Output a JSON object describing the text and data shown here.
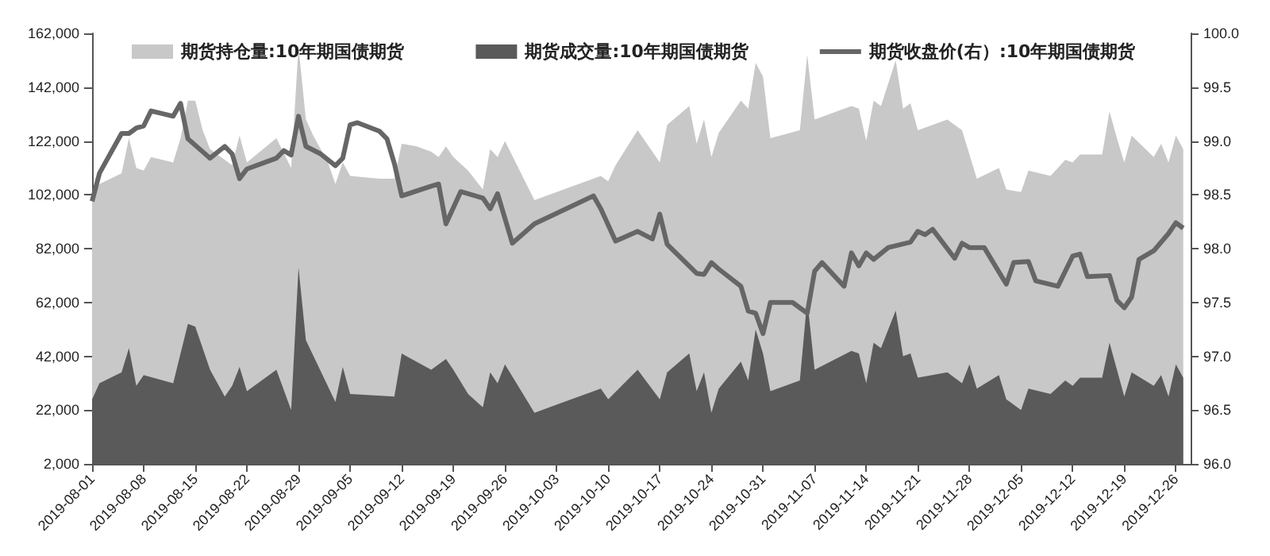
{
  "chart_data": {
    "type": "area",
    "legend": "top",
    "xlim": [
      "2019-08-01",
      "2019-12-28"
    ],
    "xticks": [
      "2019-08-01",
      "2019-08-08",
      "2019-08-15",
      "2019-08-22",
      "2019-08-29",
      "2019-09-05",
      "2019-09-12",
      "2019-09-19",
      "2019-09-26",
      "2019-10-03",
      "2019-10-10",
      "2019-10-17",
      "2019-10-24",
      "2019-10-31",
      "2019-11-07",
      "2019-11-14",
      "2019-11-21",
      "2019-11-28",
      "2019-12-05",
      "2019-12-12",
      "2019-12-19",
      "2019-12-26"
    ],
    "ylim": [
      2000,
      162000
    ],
    "yticks": [
      {
        "value": 2000,
        "label": "2,000"
      },
      {
        "value": 22000,
        "label": "22,000"
      },
      {
        "value": 42000,
        "label": "42,000"
      },
      {
        "value": 62000,
        "label": "62,000"
      },
      {
        "value": 82000,
        "label": "82,000"
      },
      {
        "value": 102000,
        "label": "102,000"
      },
      {
        "value": 122000,
        "label": "122,000"
      },
      {
        "value": 142000,
        "label": "142,000"
      },
      {
        "value": 162000,
        "label": "162,000"
      }
    ],
    "y2lim": [
      96,
      100
    ],
    "y2ticks": [
      {
        "value": 96,
        "label": "96.0"
      },
      {
        "value": 96.5,
        "label": "96.5"
      },
      {
        "value": 97,
        "label": "97.0"
      },
      {
        "value": 97.5,
        "label": "97.5"
      },
      {
        "value": 98,
        "label": "98.0"
      },
      {
        "value": 98.5,
        "label": "98.5"
      },
      {
        "value": 99,
        "label": "99.0"
      },
      {
        "value": 99.5,
        "label": "99.5"
      },
      {
        "value": 100,
        "label": "100.0"
      }
    ],
    "series": [
      {
        "name": "期货持仓量:10年期国债期货",
        "color": "#c8c8c8",
        "x": [
          "2019-08-01",
          "2019-08-02",
          "2019-08-05",
          "2019-08-06",
          "2019-08-07",
          "2019-08-08",
          "2019-08-09",
          "2019-08-12",
          "2019-08-13",
          "2019-08-14",
          "2019-08-15",
          "2019-08-16",
          "2019-08-17",
          "2019-08-19",
          "2019-08-20",
          "2019-08-21",
          "2019-08-22",
          "2019-08-26",
          "2019-08-28",
          "2019-08-29",
          "2019-08-30",
          "2019-08-31",
          "2019-09-02",
          "2019-09-03",
          "2019-09-04",
          "2019-09-05",
          "2019-09-09",
          "2019-09-11",
          "2019-09-12",
          "2019-09-14",
          "2019-09-16",
          "2019-09-17",
          "2019-09-18",
          "2019-09-19",
          "2019-09-21",
          "2019-09-23",
          "2019-09-24",
          "2019-09-25",
          "2019-09-26",
          "2019-09-30",
          "2019-10-09",
          "2019-10-10",
          "2019-10-11",
          "2019-10-14",
          "2019-10-17",
          "2019-10-18",
          "2019-10-21",
          "2019-10-22",
          "2019-10-23",
          "2019-10-24",
          "2019-10-25",
          "2019-10-28",
          "2019-10-29",
          "2019-10-30",
          "2019-10-31",
          "2019-11-01",
          "2019-11-05",
          "2019-11-06",
          "2019-11-07",
          "2019-11-12",
          "2019-11-13",
          "2019-11-14",
          "2019-11-15",
          "2019-11-16",
          "2019-11-18",
          "2019-11-19",
          "2019-11-20",
          "2019-11-21",
          "2019-11-25",
          "2019-11-27",
          "2019-11-29",
          "2019-12-02",
          "2019-12-03",
          "2019-12-05",
          "2019-12-06",
          "2019-12-09",
          "2019-12-11",
          "2019-12-12",
          "2019-12-13",
          "2019-12-16",
          "2019-12-17",
          "2019-12-18",
          "2019-12-19",
          "2019-12-20",
          "2019-12-23",
          "2019-12-24",
          "2019-12-25",
          "2019-12-26",
          "2019-12-27"
        ],
        "values": [
          102000,
          106000,
          110000,
          123000,
          112000,
          111000,
          116000,
          114000,
          123000,
          137000,
          137000,
          126000,
          119000,
          115000,
          113000,
          124000,
          114000,
          123000,
          112000,
          157000,
          130000,
          124000,
          114000,
          106000,
          114000,
          109000,
          108000,
          108000,
          121000,
          120000,
          118000,
          116000,
          120000,
          116000,
          111000,
          104000,
          119000,
          116000,
          122000,
          100000,
          109000,
          107000,
          113000,
          126000,
          114000,
          128000,
          135000,
          121000,
          130000,
          116000,
          125000,
          137000,
          134000,
          151000,
          146000,
          123000,
          126000,
          154000,
          130000,
          135000,
          134000,
          122000,
          137000,
          135000,
          152000,
          134000,
          136000,
          126000,
          130000,
          126000,
          108000,
          112000,
          104000,
          103000,
          111000,
          109000,
          115000,
          114000,
          117000,
          117000,
          133000,
          123000,
          114000,
          124000,
          116000,
          121000,
          114000,
          124000,
          119000
        ]
      },
      {
        "name": "期货成交量:10年期国债期货",
        "color": "#5a5a5a",
        "x": [
          "2019-08-01",
          "2019-08-02",
          "2019-08-05",
          "2019-08-06",
          "2019-08-07",
          "2019-08-08",
          "2019-08-12",
          "2019-08-14",
          "2019-08-15",
          "2019-08-17",
          "2019-08-19",
          "2019-08-20",
          "2019-08-21",
          "2019-08-22",
          "2019-08-26",
          "2019-08-28",
          "2019-08-29",
          "2019-08-30",
          "2019-09-03",
          "2019-09-04",
          "2019-09-05",
          "2019-09-11",
          "2019-09-12",
          "2019-09-16",
          "2019-09-18",
          "2019-09-19",
          "2019-09-21",
          "2019-09-23",
          "2019-09-24",
          "2019-09-25",
          "2019-09-26",
          "2019-09-30",
          "2019-10-09",
          "2019-10-10",
          "2019-10-14",
          "2019-10-17",
          "2019-10-18",
          "2019-10-21",
          "2019-10-22",
          "2019-10-23",
          "2019-10-24",
          "2019-10-25",
          "2019-10-28",
          "2019-10-29",
          "2019-10-30",
          "2019-10-31",
          "2019-11-01",
          "2019-11-05",
          "2019-11-06",
          "2019-11-07",
          "2019-11-12",
          "2019-11-13",
          "2019-11-14",
          "2019-11-15",
          "2019-11-16",
          "2019-11-18",
          "2019-11-19",
          "2019-11-20",
          "2019-11-21",
          "2019-11-25",
          "2019-11-27",
          "2019-11-28",
          "2019-11-29",
          "2019-12-02",
          "2019-12-03",
          "2019-12-05",
          "2019-12-06",
          "2019-12-09",
          "2019-12-11",
          "2019-12-12",
          "2019-12-13",
          "2019-12-16",
          "2019-12-17",
          "2019-12-19",
          "2019-12-20",
          "2019-12-23",
          "2019-12-24",
          "2019-12-25",
          "2019-12-26",
          "2019-12-27"
        ],
        "values": [
          26000,
          32000,
          36000,
          45000,
          31000,
          35000,
          32000,
          54000,
          53000,
          37000,
          27000,
          31000,
          38000,
          29000,
          37000,
          22000,
          75000,
          48000,
          25000,
          38000,
          28000,
          27000,
          43000,
          37000,
          41000,
          37000,
          28000,
          23000,
          36000,
          32000,
          39000,
          21000,
          30000,
          26000,
          37000,
          26000,
          36000,
          43000,
          29000,
          36000,
          21000,
          30000,
          40000,
          33000,
          52000,
          43000,
          29000,
          33000,
          63000,
          37000,
          44000,
          43000,
          32000,
          47000,
          45000,
          59000,
          42000,
          43000,
          34000,
          36000,
          32000,
          39000,
          30000,
          35000,
          26000,
          22000,
          30000,
          28000,
          33000,
          31000,
          34000,
          34000,
          47000,
          27000,
          36000,
          31000,
          35000,
          27000,
          39000,
          34000
        ]
      },
      {
        "name": "期货收盘价(右）:10年期国债期货",
        "type": "line",
        "axis": "y2",
        "color": "#666666",
        "x": [
          "2019-08-01",
          "2019-08-02",
          "2019-08-05",
          "2019-08-06",
          "2019-08-07",
          "2019-08-08",
          "2019-08-09",
          "2019-08-12",
          "2019-08-13",
          "2019-08-14",
          "2019-08-17",
          "2019-08-19",
          "2019-08-20",
          "2019-08-21",
          "2019-08-22",
          "2019-08-26",
          "2019-08-27",
          "2019-08-28",
          "2019-08-29",
          "2019-08-30",
          "2019-09-01",
          "2019-09-03",
          "2019-09-04",
          "2019-09-05",
          "2019-09-06",
          "2019-09-09",
          "2019-09-10",
          "2019-09-11",
          "2019-09-12",
          "2019-09-16",
          "2019-09-17",
          "2019-09-18",
          "2019-09-20",
          "2019-09-23",
          "2019-09-24",
          "2019-09-25",
          "2019-09-27",
          "2019-09-30",
          "2019-10-08",
          "2019-10-09",
          "2019-10-11",
          "2019-10-14",
          "2019-10-16",
          "2019-10-17",
          "2019-10-18",
          "2019-10-22",
          "2019-10-23",
          "2019-10-24",
          "2019-10-25",
          "2019-10-28",
          "2019-10-29",
          "2019-10-30",
          "2019-10-31",
          "2019-11-01",
          "2019-11-04",
          "2019-11-06",
          "2019-11-07",
          "2019-11-08",
          "2019-11-11",
          "2019-11-12",
          "2019-11-13",
          "2019-11-14",
          "2019-11-15",
          "2019-11-17",
          "2019-11-20",
          "2019-11-21",
          "2019-11-22",
          "2019-11-23",
          "2019-11-26",
          "2019-11-27",
          "2019-11-28",
          "2019-11-30",
          "2019-12-03",
          "2019-12-04",
          "2019-12-06",
          "2019-12-07",
          "2019-12-10",
          "2019-12-12",
          "2019-12-13",
          "2019-12-14",
          "2019-12-17",
          "2019-12-18",
          "2019-12-19",
          "2019-12-20",
          "2019-12-21",
          "2019-12-23",
          "2019-12-25",
          "2019-12-26",
          "2019-12-27"
        ],
        "values": [
          98.44,
          98.7,
          99.07,
          99.07,
          99.12,
          99.14,
          99.28,
          99.23,
          99.35,
          99.02,
          98.84,
          98.95,
          98.88,
          98.65,
          98.74,
          98.84,
          98.91,
          98.87,
          99.23,
          98.95,
          98.88,
          98.77,
          98.84,
          99.15,
          99.17,
          99.09,
          99.02,
          98.79,
          98.49,
          98.58,
          98.6,
          98.23,
          98.53,
          98.47,
          98.37,
          98.51,
          98.05,
          98.23,
          98.49,
          98.37,
          98.07,
          98.16,
          98.09,
          98.32,
          98.04,
          97.77,
          97.76,
          97.87,
          97.81,
          97.65,
          97.42,
          97.4,
          97.21,
          97.5,
          97.5,
          97.4,
          97.79,
          97.87,
          97.65,
          97.96,
          97.84,
          97.96,
          97.9,
          98.01,
          98.06,
          98.16,
          98.13,
          98.18,
          97.91,
          98.05,
          98.01,
          98.01,
          97.67,
          97.87,
          97.88,
          97.7,
          97.65,
          97.93,
          97.95,
          97.74,
          97.75,
          97.52,
          97.45,
          97.55,
          97.9,
          97.98,
          98.14,
          98.24,
          98.19
        ]
      }
    ]
  }
}
